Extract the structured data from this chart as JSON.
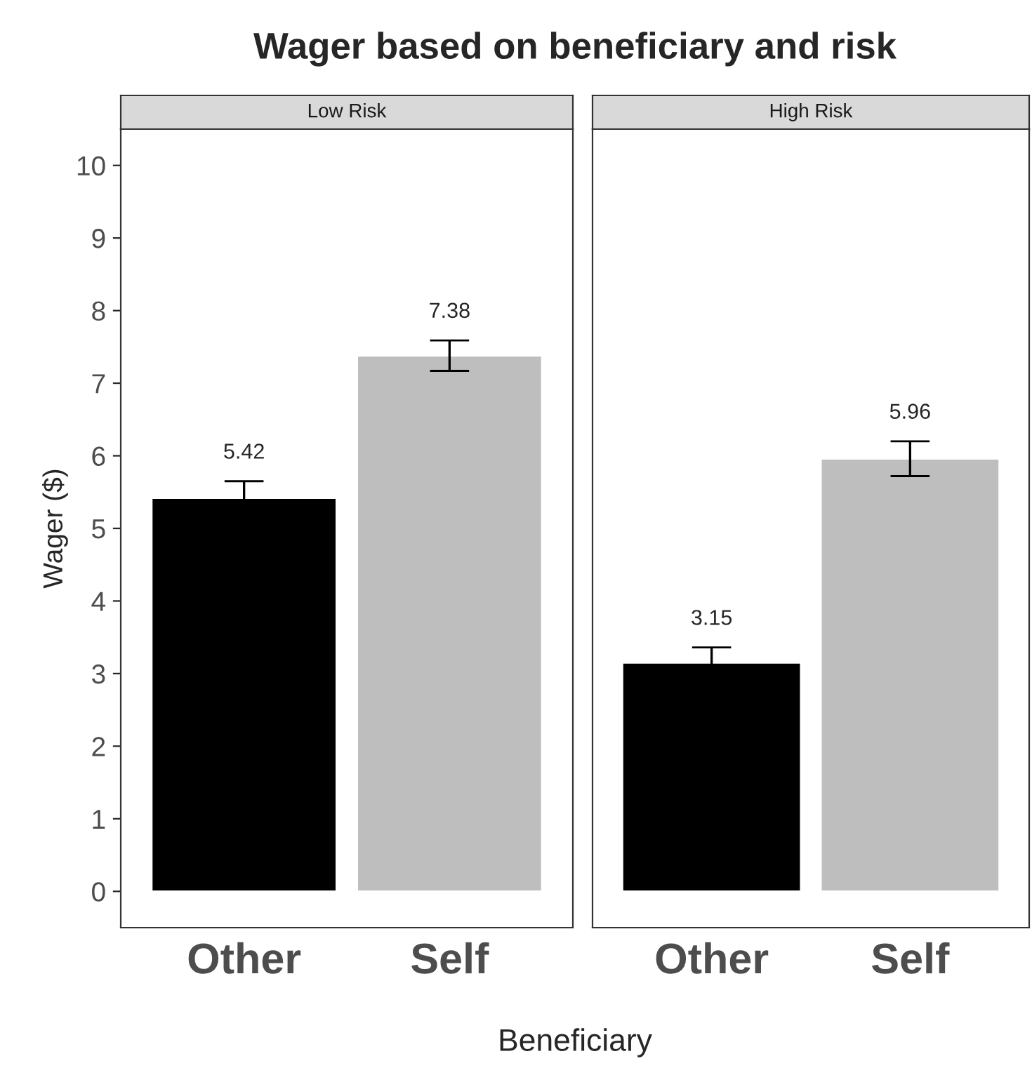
{
  "chart_data": [
    {
      "type": "bar",
      "title": "Wager based on beneficiary and risk",
      "subtitle": "Low Risk",
      "ylabel": "Wager ($)",
      "xlabel": "Beneficiary",
      "categories": [
        "Other",
        "Self"
      ],
      "values": [
        5.42,
        7.38
      ],
      "colors": [
        "#000000",
        "#bebebe"
      ],
      "errors": [
        0.23,
        0.21
      ],
      "data_labels": true,
      "ylim": [
        -0.5,
        10.5
      ],
      "yticks": [
        0,
        1,
        2,
        3,
        4,
        5,
        6,
        7,
        8,
        9,
        10
      ],
      "grid": false
    },
    {
      "type": "bar",
      "subtitle": "High Risk",
      "categories": [
        "Other",
        "Self"
      ],
      "values": [
        3.15,
        5.96
      ],
      "colors": [
        "#000000",
        "#bebebe"
      ],
      "errors": [
        0.21,
        0.24
      ],
      "data_labels": true,
      "ylim": [
        -0.5,
        10.5
      ],
      "yticks": [
        0,
        1,
        2,
        3,
        4,
        5,
        6,
        7,
        8,
        9,
        10
      ],
      "tick_labels": "x",
      "grid": false
    }
  ]
}
